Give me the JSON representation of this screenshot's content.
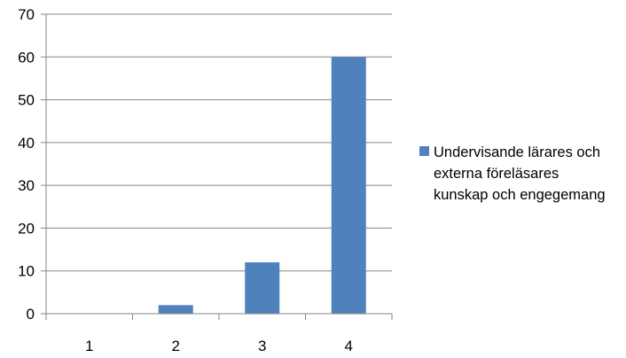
{
  "chart_data": {
    "type": "bar",
    "categories": [
      "1",
      "2",
      "3",
      "4"
    ],
    "series": [
      {
        "name": "Undervisande lärares och\nexterna föreläsares\nkunskap och engegemang",
        "values": [
          0,
          2,
          12,
          60
        ],
        "color": "#4F81BD"
      }
    ],
    "ylim": [
      0,
      70
    ],
    "yticks": [
      0,
      10,
      20,
      30,
      40,
      50,
      60,
      70
    ],
    "grid": true,
    "legend_position": "right"
  },
  "colors": {
    "bar": "#4F81BD",
    "gridline": "#868686",
    "axis": "#868686"
  }
}
